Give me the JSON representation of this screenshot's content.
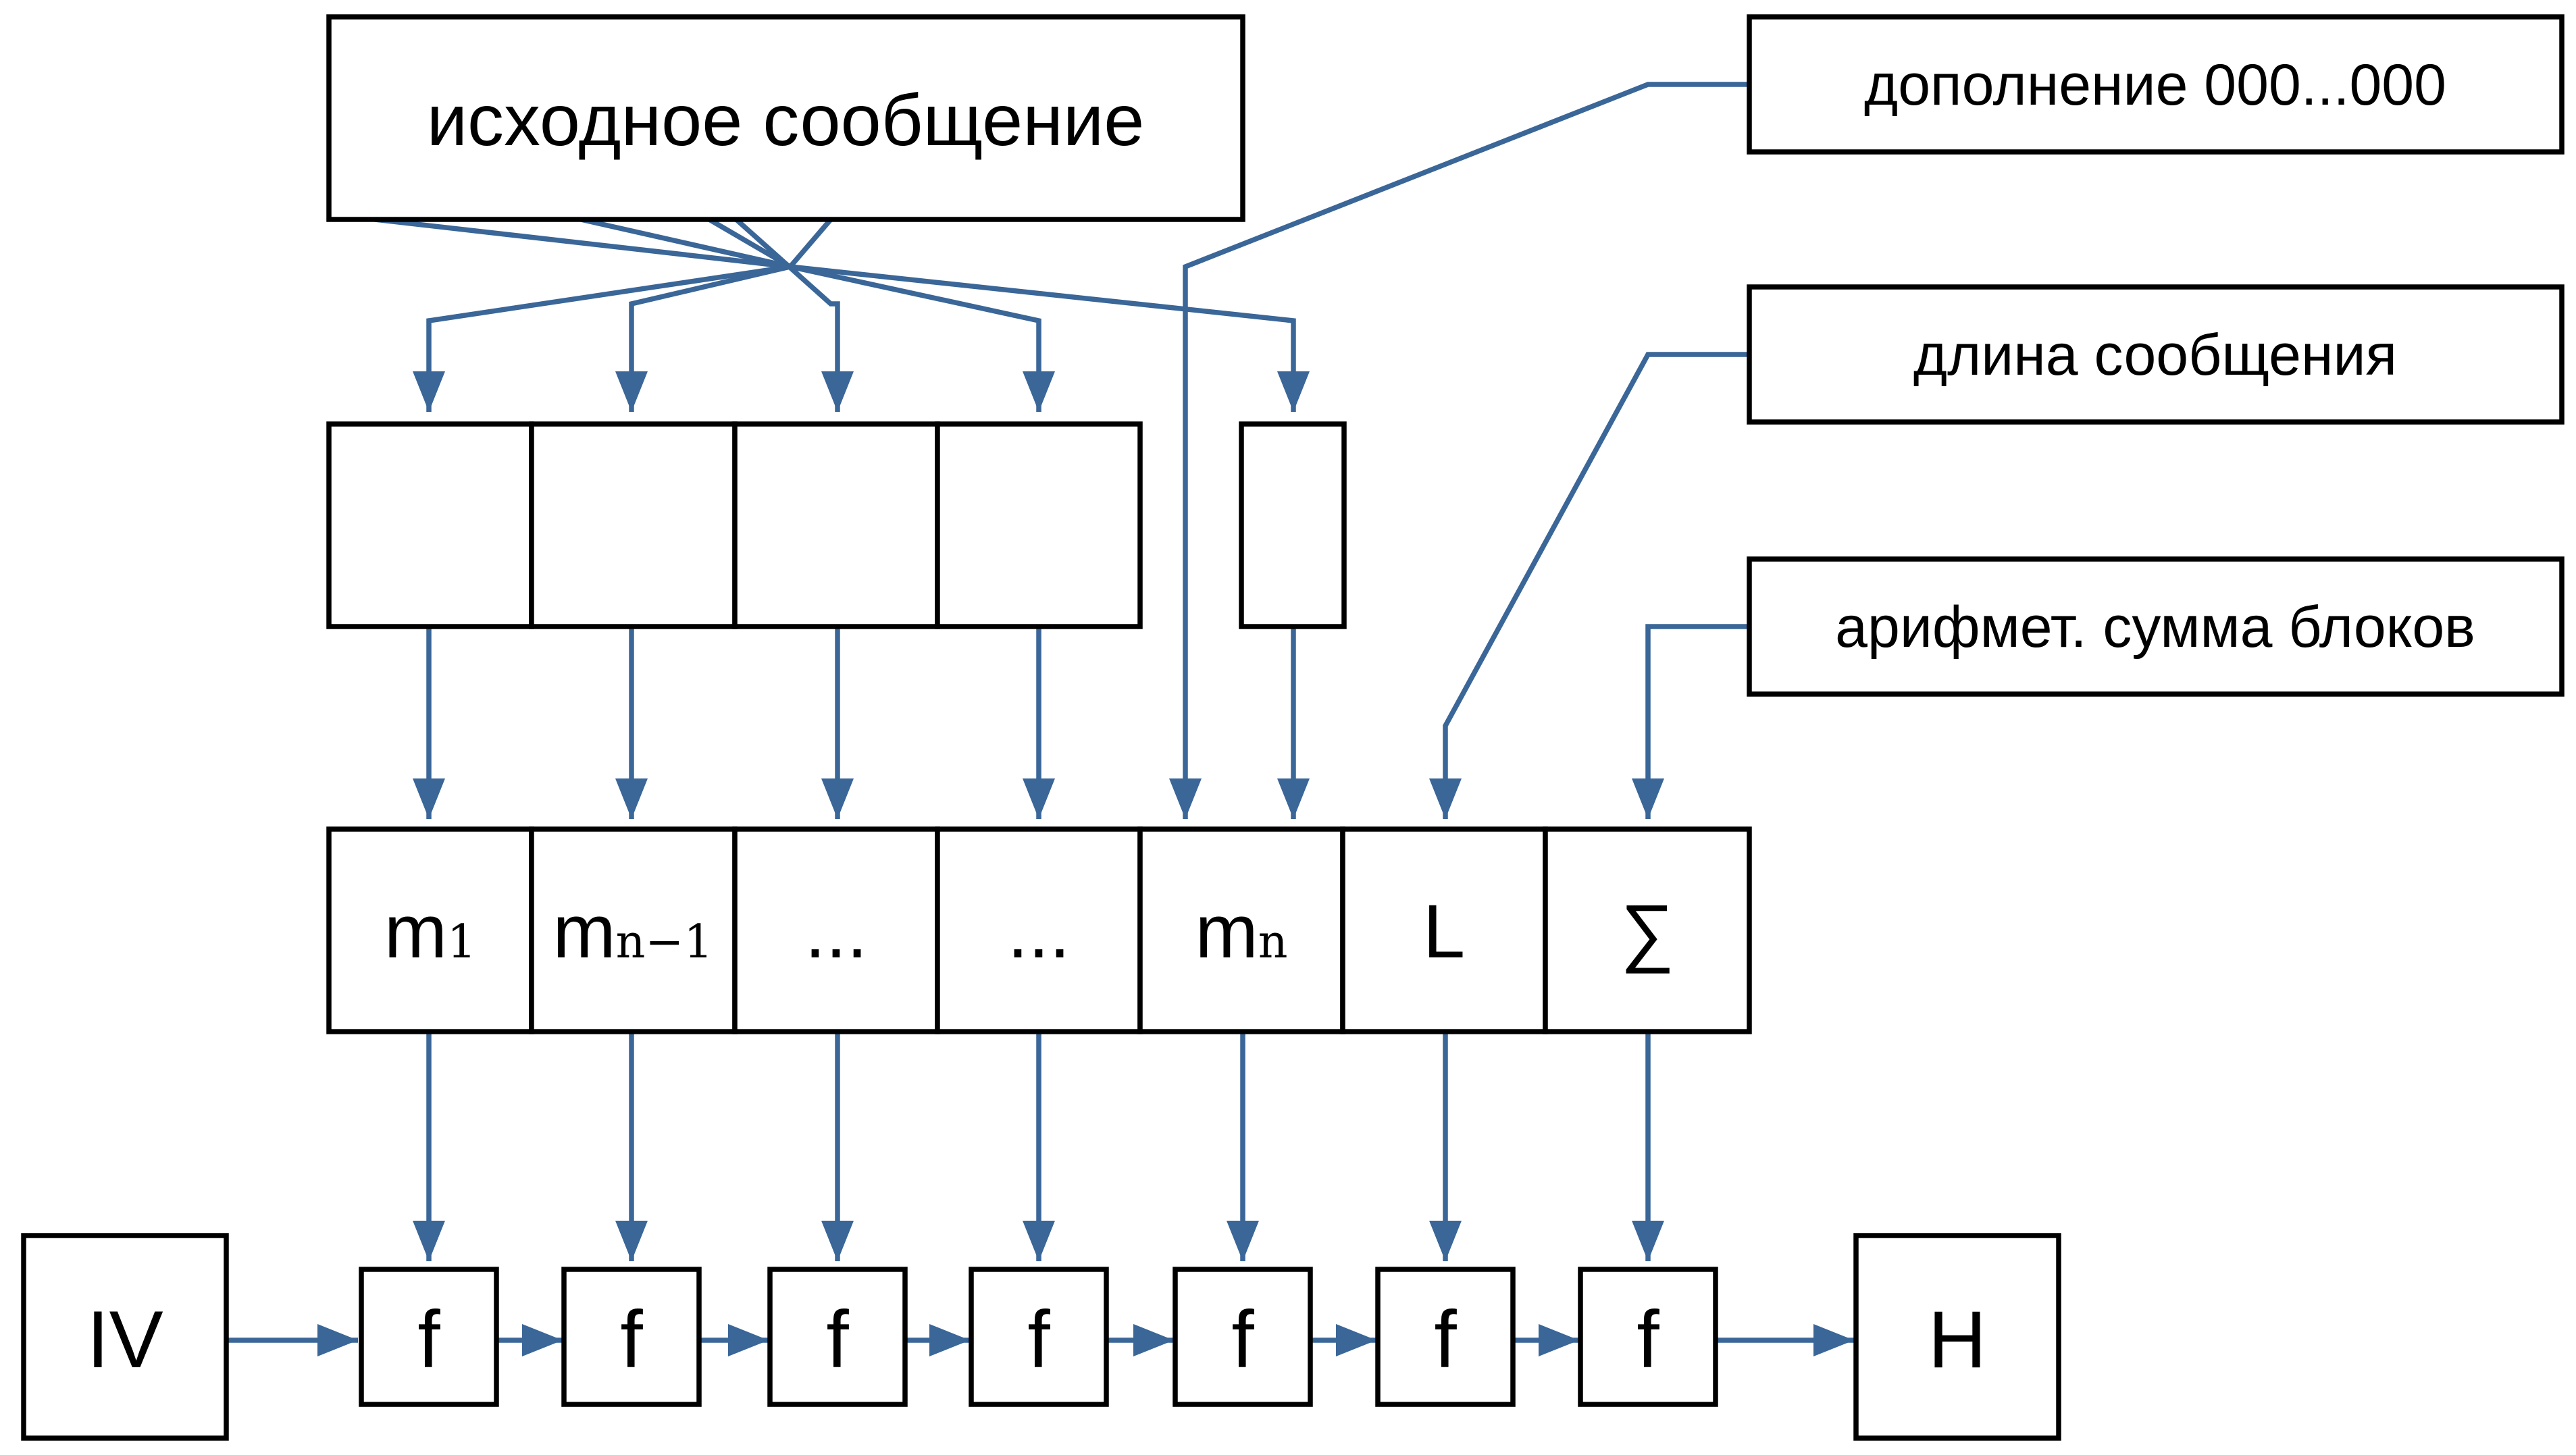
{
  "header": {
    "source_label": "исходное сообщение"
  },
  "notes": {
    "padding_label": "дополнение 000...000",
    "length_label": "длина сообщения",
    "sum_label": "арифмет. сумма блоков"
  },
  "blocks": {
    "cells": [
      {
        "main": "m",
        "sub": "1"
      },
      {
        "main": "m",
        "sub": "n−1"
      },
      {
        "main": "...",
        "sub": ""
      },
      {
        "main": "...",
        "sub": ""
      },
      {
        "main": "m",
        "sub": "n"
      },
      {
        "main": "L",
        "sub": ""
      },
      {
        "main": "∑",
        "sub": ""
      }
    ]
  },
  "chain": {
    "iv_label": "IV",
    "f_label": "f",
    "h_label": "H"
  },
  "colors": {
    "arrow": "#3a6698",
    "outline": "#000000"
  }
}
